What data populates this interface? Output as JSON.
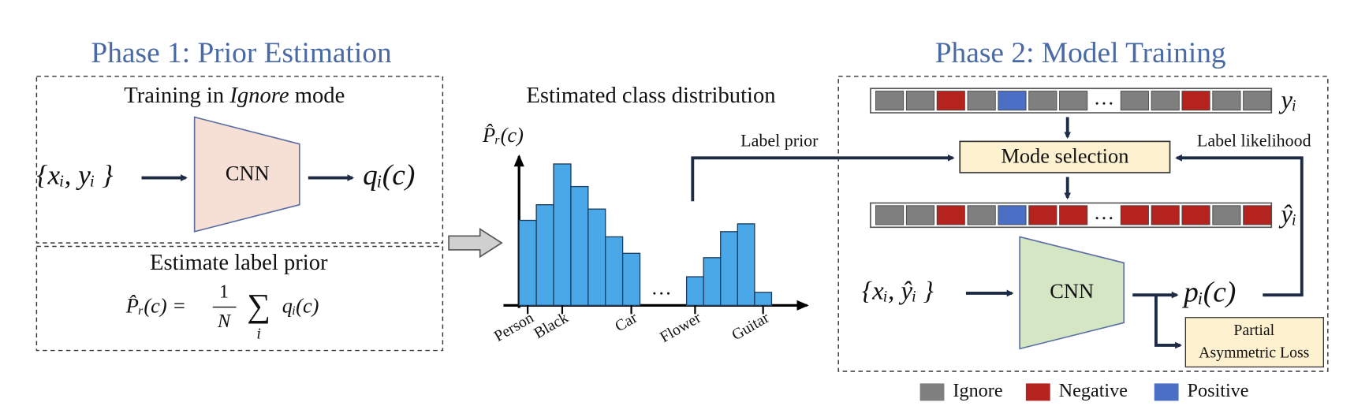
{
  "phase1": {
    "title": "Phase 1: Prior Estimation",
    "training": {
      "title_pre": "Training in ",
      "title_em": "Ignore",
      "title_post": " mode",
      "input": "{xᵢ, yᵢ }",
      "model": "CNN",
      "output": "qᵢ(c)"
    },
    "prior": {
      "title": "Estimate label prior",
      "lhs": "P̂ᵣ(c) =",
      "numerator": "1",
      "denominator": "N",
      "sum": "∑",
      "index": "i",
      "rhs": "qᵢ(c)"
    }
  },
  "distribution": {
    "title": "Estimated class distribution",
    "y_label": "P̂ᵣ(c)",
    "ylim": [
      0,
      170
    ],
    "categories": [
      "Person",
      null,
      "Black",
      null,
      null,
      null,
      "Car",
      "Flower",
      null,
      null,
      null,
      "Guitar"
    ],
    "values": [
      98,
      116,
      163,
      137,
      111,
      79,
      60,
      33,
      55,
      85,
      94,
      15
    ],
    "color": "#4aa8e8",
    "gap_label": "…",
    "link_label": "Label prior"
  },
  "phase2": {
    "title": "Phase 2: Model Training",
    "target_label": "yᵢ",
    "row_gap": "…",
    "mode_selection": "Mode selection",
    "likelihood_label": "Label likelihood",
    "new_target_label": "ŷᵢ",
    "input": "{xᵢ, ŷᵢ }",
    "model": "CNN",
    "output": "pᵢ(c)",
    "loss_line1": "Partial",
    "loss_line2": "Asymmetric Loss"
  },
  "legend": [
    {
      "label": "Ignore",
      "color": "#7f7f7f"
    },
    {
      "label": "Negative",
      "color": "#b5231f"
    },
    {
      "label": "Positive",
      "color": "#4b6fc5"
    }
  ]
}
